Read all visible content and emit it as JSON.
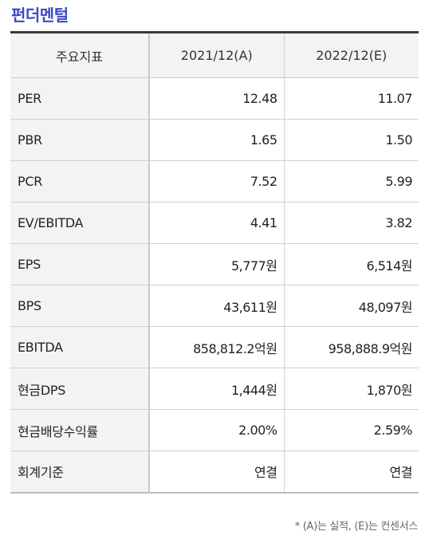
{
  "title": "펀더멘털",
  "table": {
    "headers": [
      "주요지표",
      "2021/12(A)",
      "2022/12(E)"
    ],
    "rows": [
      {
        "label": "PER",
        "v2021": "12.48",
        "v2022": "11.07"
      },
      {
        "label": "PBR",
        "v2021": "1.65",
        "v2022": "1.50"
      },
      {
        "label": "PCR",
        "v2021": "7.52",
        "v2022": "5.99"
      },
      {
        "label": "EV/EBITDA",
        "v2021": "4.41",
        "v2022": "3.82"
      },
      {
        "label": "EPS",
        "v2021": "5,777원",
        "v2022": "6,514원"
      },
      {
        "label": "BPS",
        "v2021": "43,611원",
        "v2022": "48,097원"
      },
      {
        "label": "EBITDA",
        "v2021": "858,812.2억원",
        "v2022": "958,888.9억원"
      },
      {
        "label": "현금DPS",
        "v2021": "1,444원",
        "v2022": "1,870원"
      },
      {
        "label": "현금배당수익률",
        "v2021": "2.00%",
        "v2022": "2.59%"
      },
      {
        "label": "회계기준",
        "v2021": "연결",
        "v2022": "연결"
      }
    ]
  },
  "footnote": "* (A)는 실적, (E)는 컨센서스"
}
